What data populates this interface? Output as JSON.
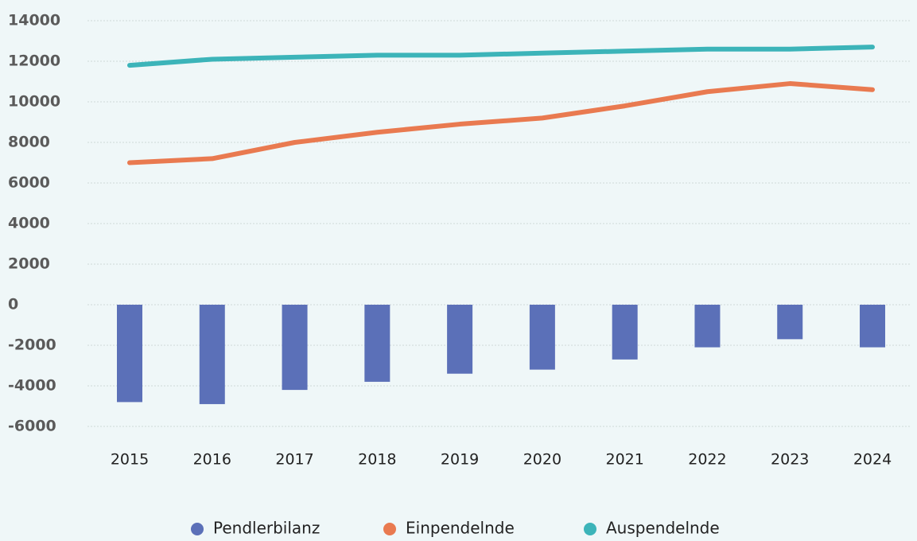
{
  "chart_data": {
    "type": "bar_line",
    "categories": [
      "2015",
      "2016",
      "2017",
      "2018",
      "2019",
      "2020",
      "2021",
      "2022",
      "2023",
      "2024"
    ],
    "series": [
      {
        "name": "Pendlerbilanz",
        "type": "bar",
        "color": "#5b70b8",
        "values": [
          -4800,
          -4900,
          -4200,
          -3800,
          -3400,
          -3200,
          -2700,
          -2100,
          -1700,
          -2100
        ]
      },
      {
        "name": "Einpendelnde",
        "type": "line",
        "color": "#e97a50",
        "values": [
          7000,
          7200,
          8000,
          8500,
          8900,
          9200,
          9800,
          10500,
          10900,
          10600
        ]
      },
      {
        "name": "Auspendelnde",
        "type": "line",
        "color": "#3cb4b9",
        "values": [
          11800,
          12100,
          12200,
          12300,
          12300,
          12400,
          12500,
          12600,
          12600,
          12700
        ]
      }
    ],
    "ylim": [
      -6000,
      14000
    ],
    "yticks": [
      -6000,
      -4000,
      -2000,
      0,
      2000,
      4000,
      6000,
      8000,
      10000,
      12000,
      14000
    ],
    "grid": true,
    "legend": "bottom"
  }
}
